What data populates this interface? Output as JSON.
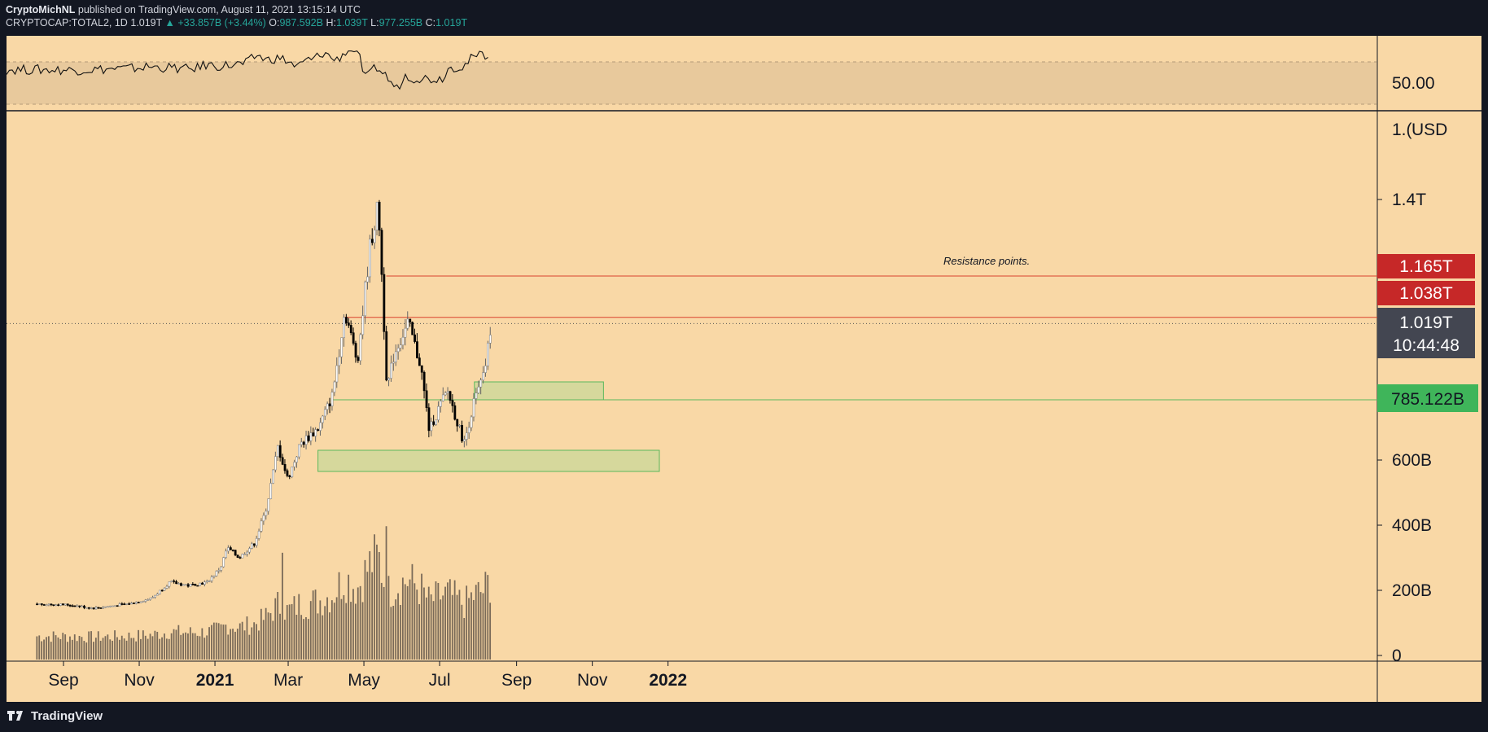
{
  "header": {
    "author": "CryptoMichNL",
    "published": "published on TradingView.com, August 11, 2021 13:15:14 UTC",
    "symbol": "CRYPTOCAP:TOTAL2, 1D",
    "last": "1.019T",
    "change": "▲ +33.857B (+3.44%)",
    "o_label": "O:",
    "o_value": "987.592B",
    "h_label": "H:",
    "h_value": "1.039T",
    "l_label": "L:",
    "l_value": "977.255B",
    "c_label": "C:",
    "c_value": "1.019T"
  },
  "footer": {
    "brand": "TradingView",
    "logo_icon": "tradingview-logo-icon"
  },
  "colors": {
    "background": "#f9d8a6",
    "frame": "#131722",
    "resistance_line": "#d9422e",
    "support_line": "#5cb85c",
    "support_zone": "#d6d89c",
    "red_label": "#c62828",
    "green_label": "#3fb55a",
    "price_label": "#434651",
    "candle_up": "#ffffff",
    "candle_down": "#000000",
    "volume": "#7a6a58"
  },
  "chart_data": {
    "type": "candlestick",
    "timeframe": "1D",
    "y_axis": {
      "unit": "USD",
      "ticks": [
        "0",
        "200B",
        "400B",
        "600B",
        "1.4T"
      ],
      "ticks_values": [
        0,
        200,
        400,
        600,
        1400
      ],
      "ylim": [
        0,
        1520
      ]
    },
    "x_axis": {
      "ticks": [
        "Sep",
        "Nov",
        "2021",
        "Mar",
        "May",
        "Jul",
        "Sep",
        "Nov",
        "2022"
      ]
    },
    "price_path": [
      {
        "x": "2020-08-10",
        "y": 158
      },
      {
        "x": "2020-09-05",
        "y": 155
      },
      {
        "x": "2020-09-25",
        "y": 145
      },
      {
        "x": "2020-10-25",
        "y": 160
      },
      {
        "x": "2020-11-10",
        "y": 175
      },
      {
        "x": "2020-11-25",
        "y": 225
      },
      {
        "x": "2020-12-10",
        "y": 215
      },
      {
        "x": "2020-12-25",
        "y": 225
      },
      {
        "x": "2021-01-05",
        "y": 270
      },
      {
        "x": "2021-01-10",
        "y": 330
      },
      {
        "x": "2021-01-20",
        "y": 300
      },
      {
        "x": "2021-02-01",
        "y": 345
      },
      {
        "x": "2021-02-10",
        "y": 440
      },
      {
        "x": "2021-02-20",
        "y": 640
      },
      {
        "x": "2021-02-28",
        "y": 540
      },
      {
        "x": "2021-03-10",
        "y": 650
      },
      {
        "x": "2021-03-25",
        "y": 700
      },
      {
        "x": "2021-04-05",
        "y": 800
      },
      {
        "x": "2021-04-15",
        "y": 1060
      },
      {
        "x": "2021-04-25",
        "y": 900
      },
      {
        "x": "2021-05-05",
        "y": 1250
      },
      {
        "x": "2021-05-12",
        "y": 1380
      },
      {
        "x": "2021-05-19",
        "y": 820
      },
      {
        "x": "2021-05-25",
        "y": 930
      },
      {
        "x": "2021-06-05",
        "y": 1020
      },
      {
        "x": "2021-06-15",
        "y": 890
      },
      {
        "x": "2021-06-22",
        "y": 690
      },
      {
        "x": "2021-07-01",
        "y": 770
      },
      {
        "x": "2021-07-07",
        "y": 810
      },
      {
        "x": "2021-07-20",
        "y": 650
      },
      {
        "x": "2021-07-28",
        "y": 780
      },
      {
        "x": "2021-08-05",
        "y": 860
      },
      {
        "x": "2021-08-11",
        "y": 1019
      }
    ],
    "volume_peaks": [
      {
        "x": "2021-02-23",
        "label": "spike"
      },
      {
        "x": "2021-05-19",
        "label": "spike"
      }
    ],
    "levels": {
      "resistance": [
        {
          "value": "1.165T",
          "y": 1165
        },
        {
          "value": "1.038T",
          "y": 1038
        }
      ],
      "support": [
        {
          "value": "785.122B",
          "y": 785.122
        }
      ],
      "current": {
        "value": "1.019T",
        "countdown": "10:44:48",
        "y": 1019
      }
    },
    "zones": [
      {
        "name": "support-zone-upper",
        "from": "2021-07-29",
        "to": "2021-11-10",
        "low": 785,
        "high": 840
      },
      {
        "name": "support-zone-lower",
        "from": "2021-03-25",
        "to": "2021-12-25",
        "low": 565,
        "high": 630
      }
    ],
    "annotation": "Resistance points.",
    "rsi_panel": {
      "value_label": "50.00",
      "value": 50
    },
    "axis_unit_label": "USD",
    "axis_top_partial": "1.("
  }
}
